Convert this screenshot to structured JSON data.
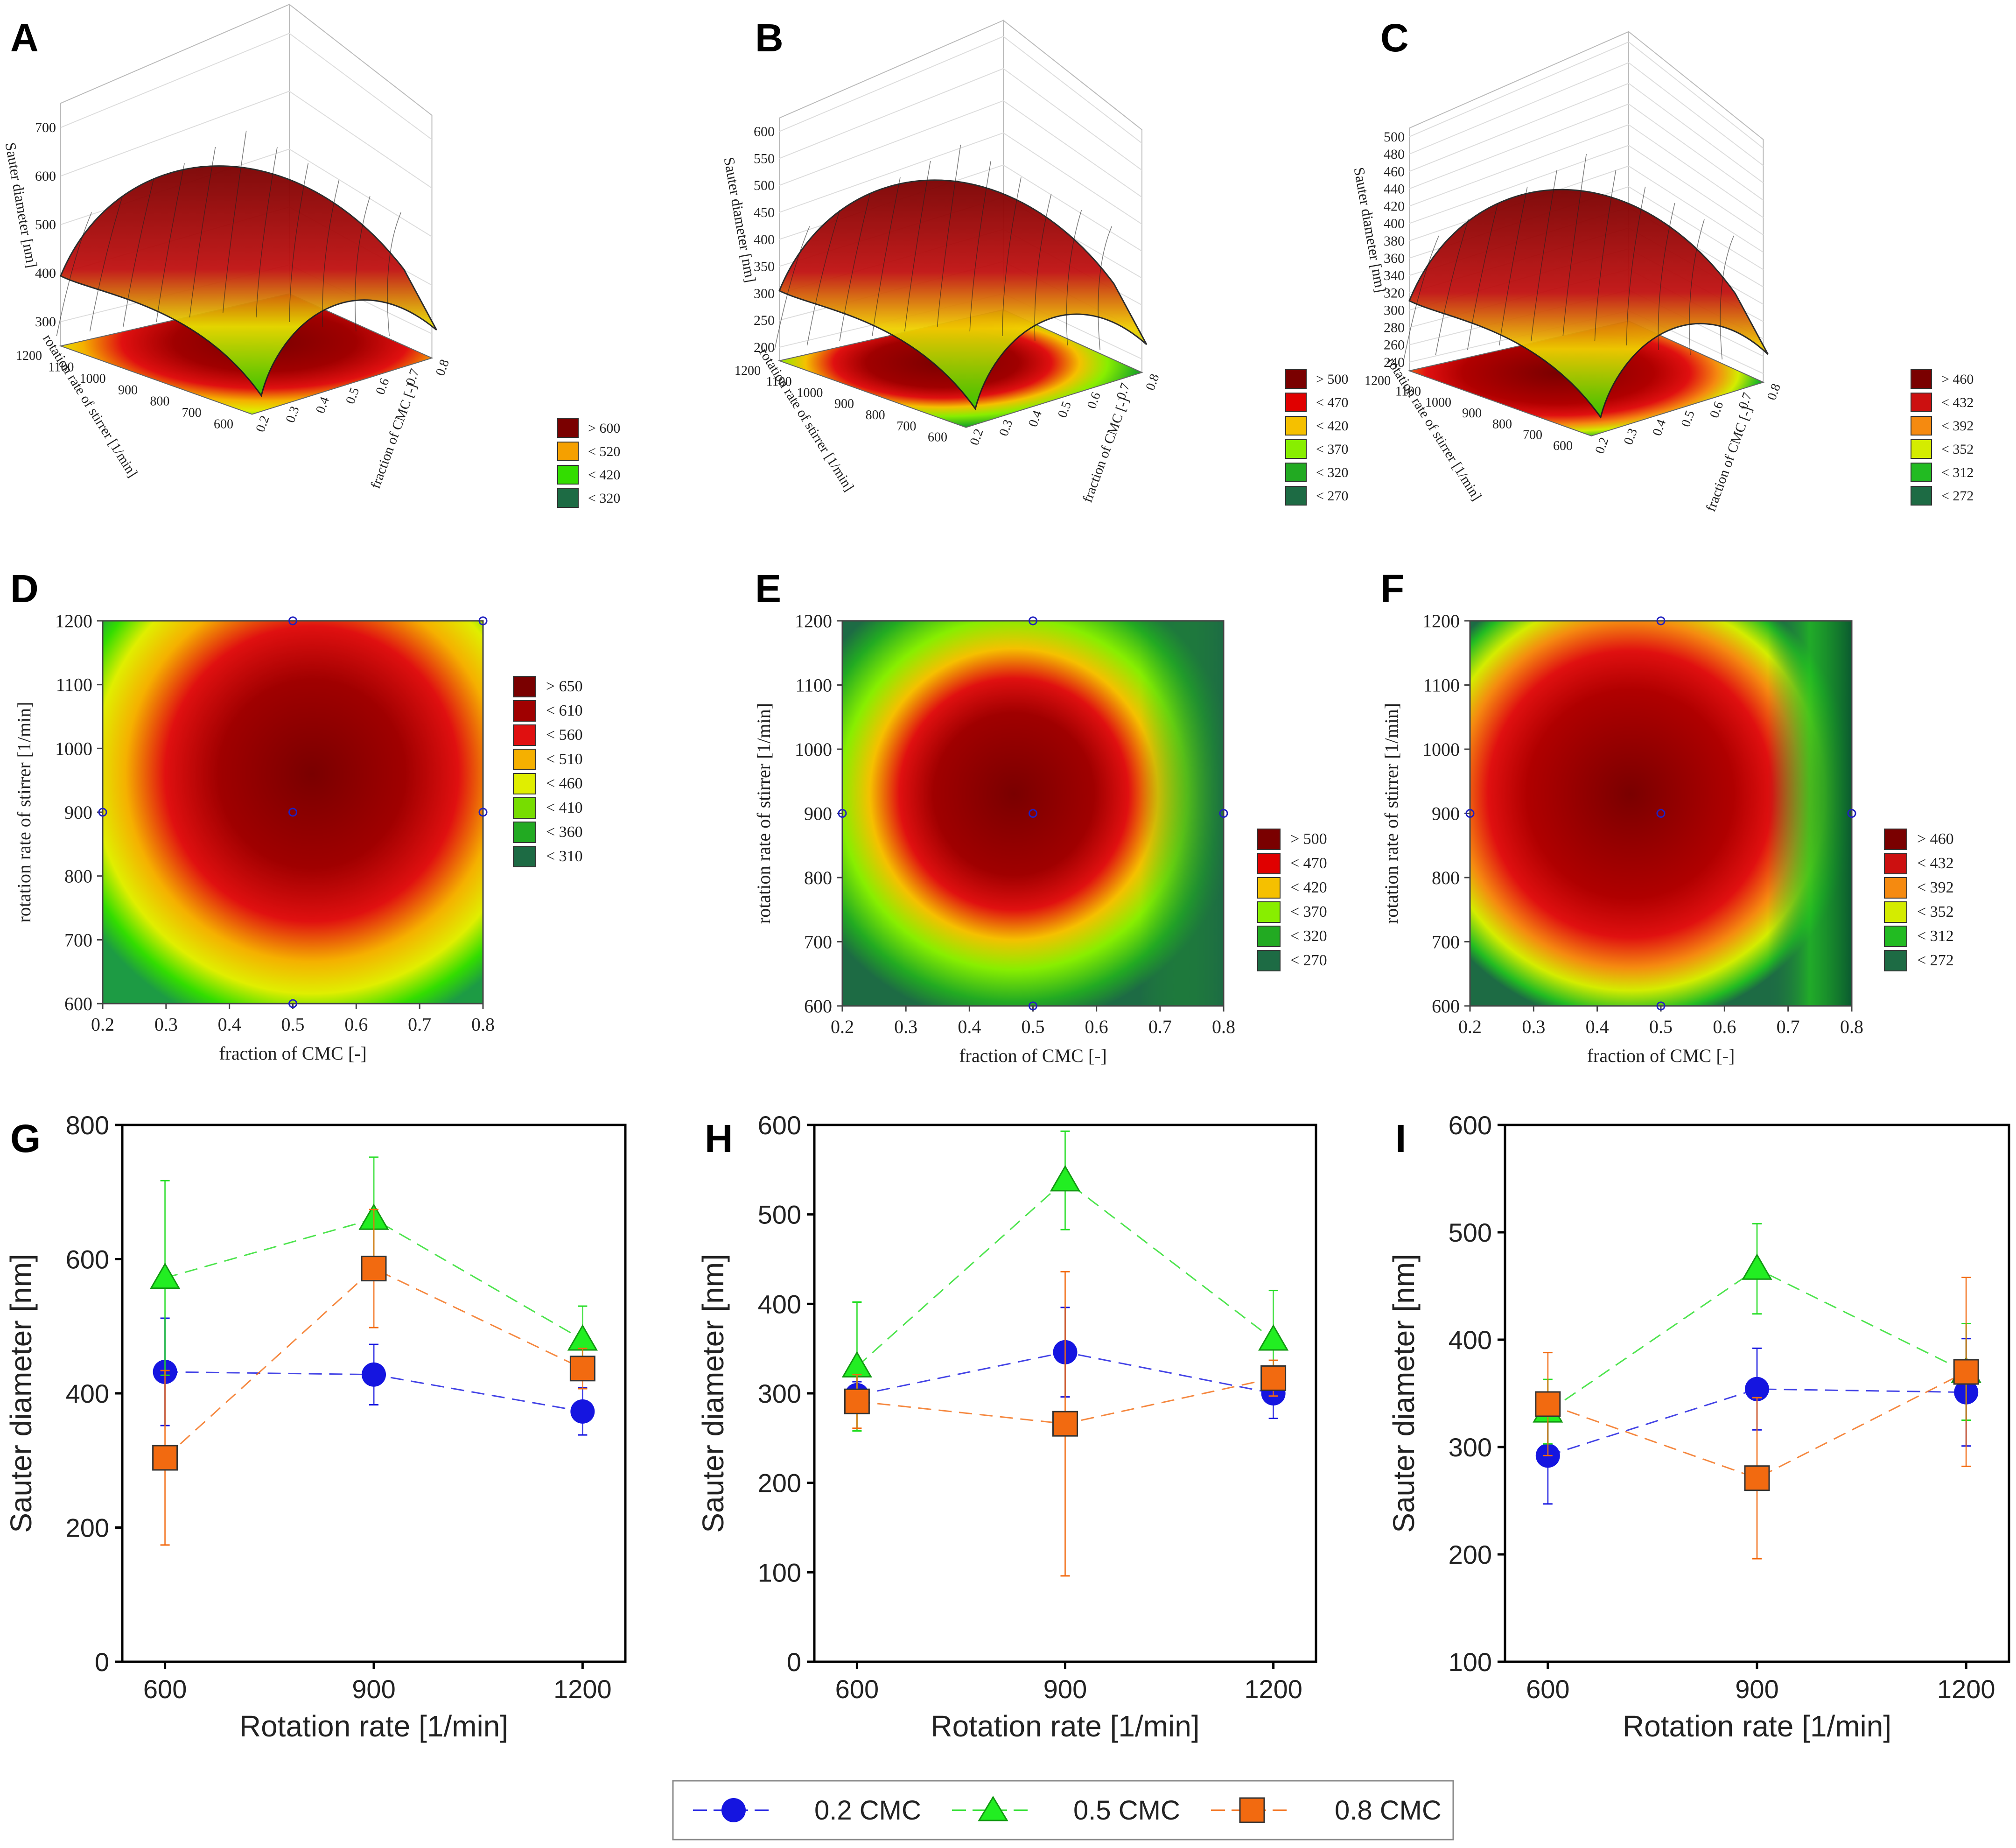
{
  "panel_letters": [
    "A",
    "B",
    "C",
    "D",
    "E",
    "F",
    "G",
    "H",
    "I"
  ],
  "chart_data": [
    {
      "panel": "A",
      "type": "surface3d",
      "zlabel": "Sauter diameter [nm]",
      "ylabel": "rotation rate of stirrer [1/min]",
      "xlabel": "fraction of CMC [-]",
      "zticks": [
        "300",
        "400",
        "500",
        "600",
        "700"
      ],
      "yticks": [
        "600",
        "700",
        "800",
        "900",
        "1000",
        "1100",
        "1200"
      ],
      "xticks": [
        "0.2",
        "0.3",
        "0.4",
        "0.5",
        "0.6",
        "0.7",
        "0.8"
      ],
      "zlim": [
        250,
        720
      ],
      "peak": {
        "x": 0.55,
        "y": 850,
        "z": 690
      },
      "legend": [
        "> 600",
        "< 520",
        "< 420",
        "< 320"
      ],
      "legend_colors": [
        "#7a0000",
        "#f5a000",
        "#33dd00",
        "#1d6b44"
      ]
    },
    {
      "panel": "B",
      "type": "surface3d",
      "zlabel": "Sauter diameter [nm]",
      "ylabel": "rotation rate of stirrer [1/min]",
      "xlabel": "fraction of CMC [-]",
      "zticks": [
        "200",
        "250",
        "300",
        "350",
        "400",
        "450",
        "500",
        "550",
        "600"
      ],
      "yticks": [
        "600",
        "700",
        "800",
        "900",
        "1000",
        "1100",
        "1200"
      ],
      "xticks": [
        "0.2",
        "0.3",
        "0.4",
        "0.5",
        "0.6",
        "0.7",
        "0.8"
      ],
      "zlim": [
        180,
        610
      ],
      "peak": {
        "x": 0.45,
        "y": 920,
        "z": 540
      },
      "legend": [
        "> 500",
        "< 470",
        "< 420",
        "< 370",
        "< 320",
        "< 270"
      ],
      "legend_colors": [
        "#7a0000",
        "#e00000",
        "#f5c000",
        "#88ee00",
        "#22aa22",
        "#1d6b44"
      ]
    },
    {
      "panel": "C",
      "type": "surface3d",
      "zlabel": "Sauter diameter [nm]",
      "ylabel": "rotation rate of stirrer [1/min]",
      "xlabel": "fraction of CMC [-]",
      "zticks": [
        "240",
        "260",
        "280",
        "300",
        "320",
        "340",
        "360",
        "380",
        "400",
        "420",
        "440",
        "460",
        "480",
        "500"
      ],
      "yticks": [
        "600",
        "700",
        "800",
        "900",
        "1000",
        "1100",
        "1200"
      ],
      "xticks": [
        "0.2",
        "0.3",
        "0.4",
        "0.5",
        "0.6",
        "0.7",
        "0.8"
      ],
      "zlim": [
        230,
        505
      ],
      "peak": {
        "x": 0.45,
        "y": 920,
        "z": 470
      },
      "legend": [
        "> 460",
        "< 432",
        "< 392",
        "< 352",
        "< 312",
        "< 272"
      ],
      "legend_colors": [
        "#7a0000",
        "#cc1010",
        "#f58a10",
        "#d4ec00",
        "#22bb22",
        "#1d6b44"
      ]
    },
    {
      "panel": "D",
      "type": "contour",
      "xlabel": "fraction of CMC [-]",
      "ylabel": "rotation rate of stirrer [1/min]",
      "xlim": [
        0.2,
        0.8
      ],
      "ylim": [
        600,
        1200
      ],
      "xticks": [
        "0.2",
        "0.3",
        "0.4",
        "0.5",
        "0.6",
        "0.7",
        "0.8"
      ],
      "yticks": [
        "600",
        "700",
        "800",
        "900",
        "1000",
        "1100",
        "1200"
      ],
      "design_points": [
        [
          0.2,
          900
        ],
        [
          0.5,
          600
        ],
        [
          0.5,
          900
        ],
        [
          0.5,
          1200
        ],
        [
          0.8,
          900
        ],
        [
          0.8,
          1200
        ]
      ],
      "legend": [
        "> 650",
        "< 610",
        "< 560",
        "< 510",
        "< 460",
        "< 410",
        "< 360",
        "< 310"
      ],
      "legend_colors": [
        "#7a0000",
        "#a00000",
        "#e01010",
        "#f5b000",
        "#e0ee00",
        "#77dd00",
        "#22aa22",
        "#1d6b44"
      ]
    },
    {
      "panel": "E",
      "type": "contour",
      "xlabel": "fraction of CMC [-]",
      "ylabel": "rotation rate of stirrer [1/min]",
      "xlim": [
        0.2,
        0.8
      ],
      "ylim": [
        600,
        1200
      ],
      "xticks": [
        "0.2",
        "0.3",
        "0.4",
        "0.5",
        "0.6",
        "0.7",
        "0.8"
      ],
      "yticks": [
        "600",
        "700",
        "800",
        "900",
        "1000",
        "1100",
        "1200"
      ],
      "design_points": [
        [
          0.2,
          900
        ],
        [
          0.5,
          600
        ],
        [
          0.5,
          900
        ],
        [
          0.5,
          1200
        ],
        [
          0.8,
          900
        ]
      ],
      "legend": [
        "> 500",
        "< 470",
        "< 420",
        "< 370",
        "< 320",
        "< 270"
      ],
      "legend_colors": [
        "#7a0000",
        "#e00000",
        "#f5c000",
        "#88ee00",
        "#22aa22",
        "#1d6b44"
      ]
    },
    {
      "panel": "F",
      "type": "contour",
      "xlabel": "fraction of CMC [-]",
      "ylabel": "rotation rate of stirrer [1/min]",
      "xlim": [
        0.2,
        0.8
      ],
      "ylim": [
        600,
        1200
      ],
      "xticks": [
        "0.2",
        "0.3",
        "0.4",
        "0.5",
        "0.6",
        "0.7",
        "0.8"
      ],
      "yticks": [
        "600",
        "700",
        "800",
        "900",
        "1000",
        "1100",
        "1200"
      ],
      "design_points": [
        [
          0.2,
          900
        ],
        [
          0.5,
          600
        ],
        [
          0.5,
          900
        ],
        [
          0.5,
          1200
        ],
        [
          0.8,
          900
        ]
      ],
      "legend": [
        "> 460",
        "< 432",
        "< 392",
        "< 352",
        "< 312",
        "< 272"
      ],
      "legend_colors": [
        "#7a0000",
        "#cc1010",
        "#f58a10",
        "#d4ec00",
        "#22bb22",
        "#1d6b44"
      ]
    },
    {
      "panel": "G",
      "type": "scatter",
      "xlabel": "Rotation rate [1/min]",
      "ylabel": "Sauter diameter [nm]",
      "x": [
        600,
        900,
        1200
      ],
      "xticks": [
        "600",
        "900",
        "1200"
      ],
      "ylim": [
        0,
        800
      ],
      "yticks": [
        "0",
        "200",
        "400",
        "600",
        "800"
      ],
      "series": [
        {
          "name": "0.2 CMC",
          "values": [
            432,
            428,
            373
          ],
          "err": [
            80,
            45,
            35
          ]
        },
        {
          "name": "0.5 CMC",
          "values": [
            572,
            660,
            480
          ],
          "err": [
            145,
            92,
            50
          ]
        },
        {
          "name": "0.8 CMC",
          "values": [
            304,
            586,
            437
          ],
          "err": [
            130,
            88,
            30
          ]
        }
      ]
    },
    {
      "panel": "H",
      "type": "scatter",
      "xlabel": "Rotation rate [1/min]",
      "ylabel": "Sauter diameter [nm]",
      "x": [
        600,
        900,
        1200
      ],
      "xticks": [
        "600",
        "900",
        "1200"
      ],
      "ylim": [
        0,
        600
      ],
      "yticks": [
        "0",
        "100",
        "200",
        "300",
        "400",
        "500",
        "600"
      ],
      "series": [
        {
          "name": "0.2 CMC",
          "values": [
            298,
            346,
            300
          ],
          "err": [
            15,
            50,
            28
          ]
        },
        {
          "name": "0.5 CMC",
          "values": [
            330,
            538,
            360
          ],
          "err": [
            72,
            55,
            55
          ]
        },
        {
          "name": "0.8 CMC",
          "values": [
            291,
            266,
            317
          ],
          "err": [
            30,
            170,
            20
          ]
        }
      ]
    },
    {
      "panel": "I",
      "type": "scatter",
      "xlabel": "Rotation rate [1/min]",
      "ylabel": "Sauter diameter [nm]",
      "x": [
        600,
        900,
        1200
      ],
      "xticks": [
        "600",
        "900",
        "1200"
      ],
      "ylim": [
        100,
        600
      ],
      "yticks": [
        "100",
        "200",
        "300",
        "400",
        "500",
        "600"
      ],
      "series": [
        {
          "name": "0.2 CMC",
          "values": [
            292,
            354,
            351
          ],
          "err": [
            45,
            38,
            50
          ]
        },
        {
          "name": "0.5 CMC",
          "values": [
            333,
            466,
            370
          ],
          "err": [
            30,
            42,
            45
          ]
        },
        {
          "name": "0.8 CMC",
          "values": [
            340,
            271,
            370
          ],
          "err": [
            48,
            75,
            88
          ]
        }
      ]
    }
  ],
  "legend": {
    "items": [
      "0.2 CMC",
      "0.5 CMC",
      "0.8 CMC"
    ],
    "colors": [
      "#1515e0",
      "#22dd22",
      "#f26a10"
    ]
  }
}
